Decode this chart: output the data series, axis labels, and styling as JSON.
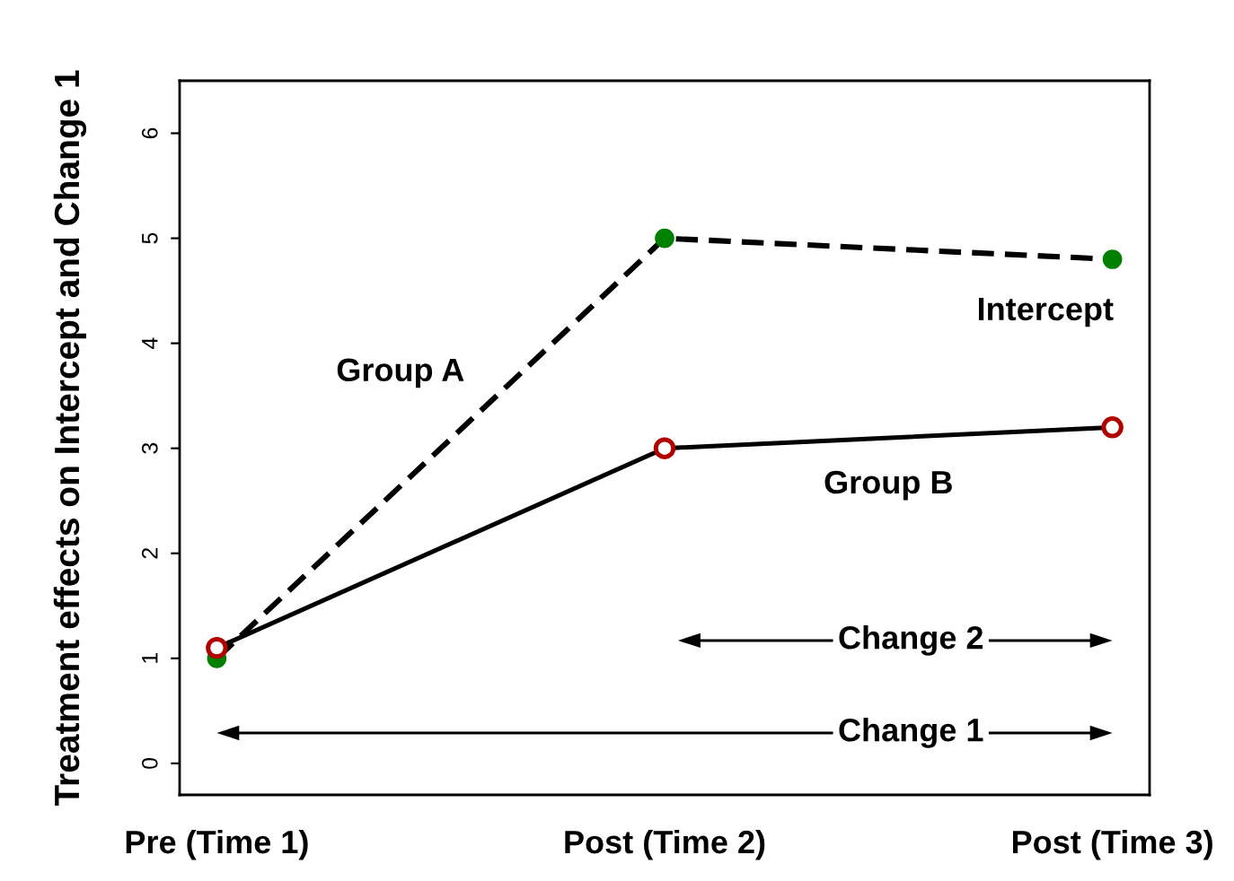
{
  "chart_data": {
    "type": "line",
    "categories": [
      "Pre (Time 1)",
      "Post (Time 2)",
      "Post (Time 3)"
    ],
    "series": [
      {
        "name": "Group A",
        "color": "#008000",
        "values": [
          1,
          5,
          4.8
        ],
        "line_style": "dashed"
      },
      {
        "name": "Group B",
        "color": "#b00000",
        "values": [
          1.1,
          3,
          3.2
        ],
        "line_style": "solid"
      }
    ],
    "ylabel": "Treatment effects on Intercept and Change 1",
    "ylim": [
      -0.3,
      6.5
    ],
    "yticks": [
      0,
      1,
      2,
      3,
      4,
      5,
      6
    ],
    "marker": "circle",
    "grid": false,
    "legend": false,
    "annotations": [
      "Intercept",
      "Change 2",
      "Change 1"
    ]
  }
}
